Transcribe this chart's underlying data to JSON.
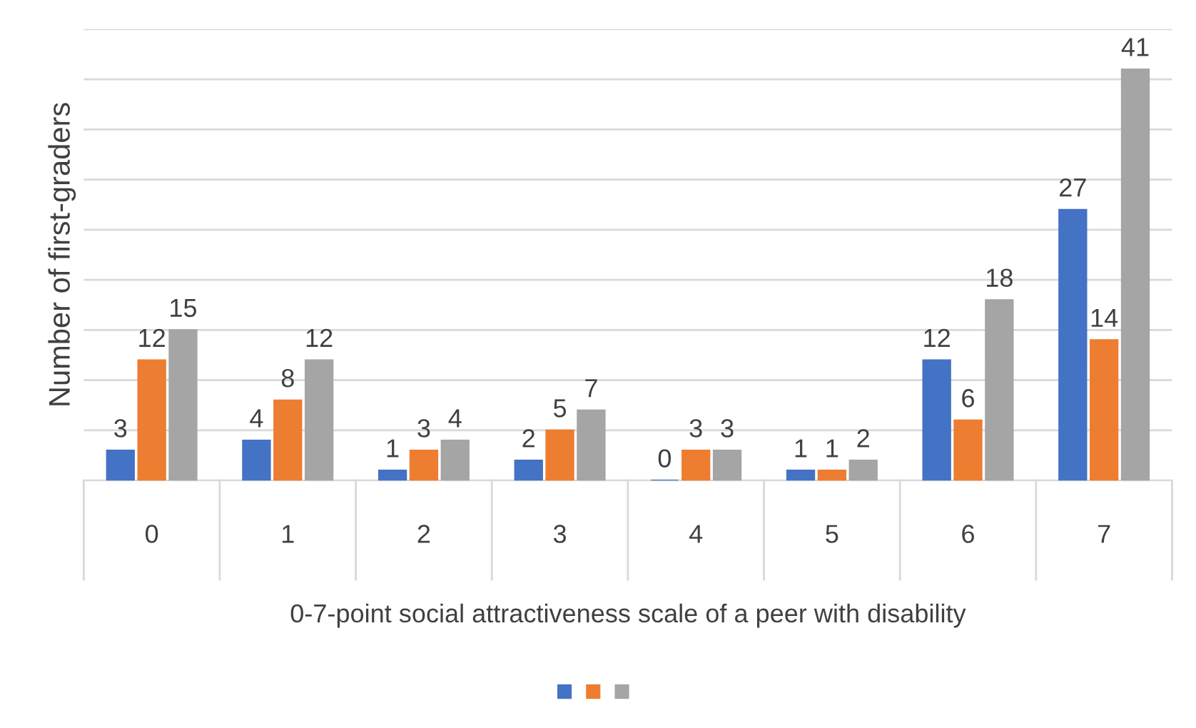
{
  "chart_data": {
    "type": "bar",
    "xlabel": "0-7-point social attractiveness scale of a peer with disability",
    "ylabel": "Number of first-graders",
    "categories": [
      "0",
      "1",
      "2",
      "3",
      "4",
      "5",
      "6",
      "7"
    ],
    "series": [
      {
        "color": "#4472c4",
        "values": [
          3,
          4,
          1,
          2,
          0,
          1,
          12,
          27
        ]
      },
      {
        "color": "#ed7d31",
        "values": [
          12,
          8,
          3,
          5,
          3,
          1,
          6,
          14
        ]
      },
      {
        "color": "#a5a5a5",
        "values": [
          15,
          12,
          4,
          7,
          3,
          2,
          18,
          41
        ]
      }
    ],
    "ylim": [
      0,
      45
    ],
    "yticks": [
      {
        "value": 0,
        "label": null
      },
      {
        "value": 5,
        "label": null
      },
      {
        "value": 10,
        "label": null
      },
      {
        "value": 15,
        "label": null
      },
      {
        "value": 20,
        "label": null
      },
      {
        "value": 25,
        "label": null
      },
      {
        "value": 30,
        "label": null
      },
      {
        "value": 35,
        "label": null
      },
      {
        "value": 40,
        "label": null
      },
      {
        "value": 45,
        "label": null
      }
    ],
    "tick_labels": "x",
    "data_labels": true,
    "grid": "y"
  }
}
